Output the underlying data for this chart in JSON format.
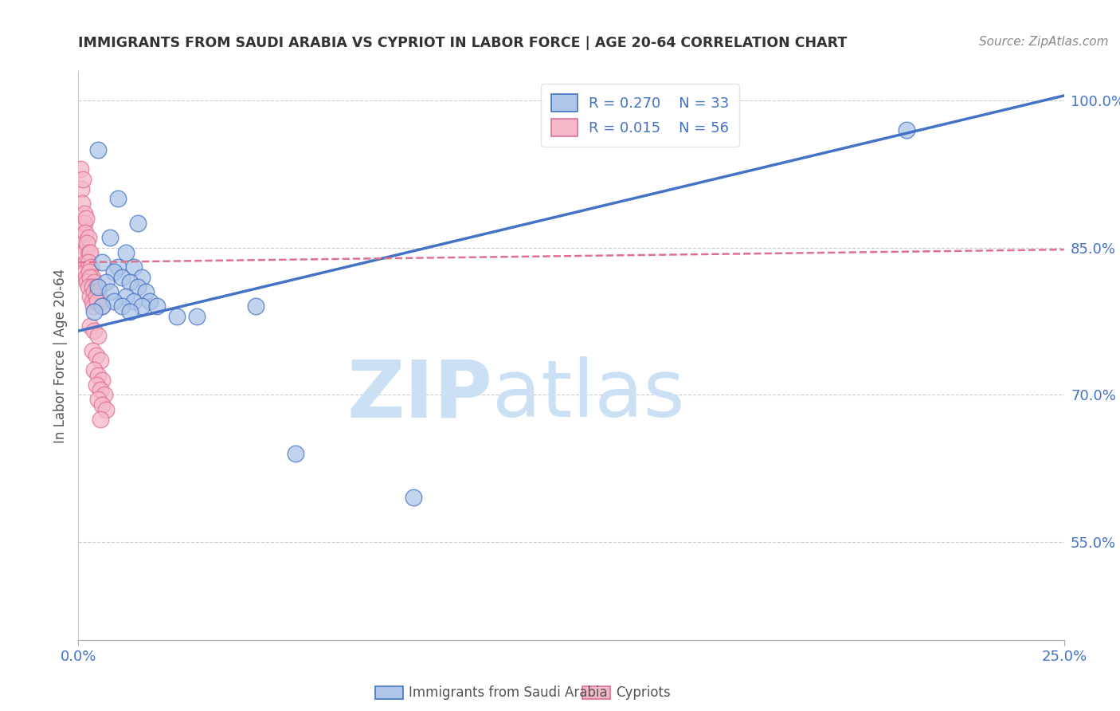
{
  "title": "IMMIGRANTS FROM SAUDI ARABIA VS CYPRIOT IN LABOR FORCE | AGE 20-64 CORRELATION CHART",
  "source": "Source: ZipAtlas.com",
  "ylabel": "In Labor Force | Age 20-64",
  "yticks": [
    55.0,
    70.0,
    85.0,
    100.0
  ],
  "ytick_labels": [
    "55.0%",
    "70.0%",
    "85.0%",
    "100.0%"
  ],
  "xlim": [
    0.0,
    25.0
  ],
  "ylim": [
    45.0,
    103.0
  ],
  "legend_r1": "R = 0.270",
  "legend_n1": "N = 33",
  "legend_r2": "R = 0.015",
  "legend_n2": "N = 56",
  "color_saudi": "#aec6e8",
  "color_cypriot": "#f5b8c8",
  "line_color_saudi": "#4472c4",
  "line_color_cypriot": "#e07090",
  "watermark_zip": "ZIP",
  "watermark_atlas": "atlas",
  "watermark_color": "#cce0f5",
  "title_color": "#333333",
  "source_color": "#888888",
  "axis_label_color": "#555555",
  "tick_color": "#4472c4",
  "saudi_scatter": [
    [
      0.5,
      95.0
    ],
    [
      1.0,
      90.0
    ],
    [
      1.5,
      87.5
    ],
    [
      0.8,
      86.0
    ],
    [
      1.2,
      84.5
    ],
    [
      0.6,
      83.5
    ],
    [
      1.0,
      83.0
    ],
    [
      1.4,
      83.0
    ],
    [
      0.9,
      82.5
    ],
    [
      1.1,
      82.0
    ],
    [
      1.6,
      82.0
    ],
    [
      0.7,
      81.5
    ],
    [
      1.3,
      81.5
    ],
    [
      0.5,
      81.0
    ],
    [
      1.5,
      81.0
    ],
    [
      0.8,
      80.5
    ],
    [
      1.7,
      80.5
    ],
    [
      1.2,
      80.0
    ],
    [
      0.9,
      79.5
    ],
    [
      1.4,
      79.5
    ],
    [
      1.8,
      79.5
    ],
    [
      0.6,
      79.0
    ],
    [
      1.1,
      79.0
    ],
    [
      1.6,
      79.0
    ],
    [
      0.4,
      78.5
    ],
    [
      1.3,
      78.5
    ],
    [
      2.0,
      79.0
    ],
    [
      2.5,
      78.0
    ],
    [
      3.0,
      78.0
    ],
    [
      4.5,
      79.0
    ],
    [
      5.5,
      64.0
    ],
    [
      8.5,
      59.5
    ],
    [
      21.0,
      97.0
    ]
  ],
  "cypriot_scatter": [
    [
      0.05,
      93.0
    ],
    [
      0.08,
      91.0
    ],
    [
      0.1,
      89.5
    ],
    [
      0.12,
      92.0
    ],
    [
      0.15,
      88.5
    ],
    [
      0.08,
      87.0
    ],
    [
      0.1,
      86.0
    ],
    [
      0.15,
      87.5
    ],
    [
      0.2,
      88.0
    ],
    [
      0.12,
      85.5
    ],
    [
      0.18,
      86.5
    ],
    [
      0.2,
      85.0
    ],
    [
      0.25,
      86.0
    ],
    [
      0.15,
      84.5
    ],
    [
      0.22,
      85.5
    ],
    [
      0.28,
      84.5
    ],
    [
      0.2,
      83.5
    ],
    [
      0.25,
      83.0
    ],
    [
      0.3,
      84.5
    ],
    [
      0.18,
      82.5
    ],
    [
      0.25,
      83.5
    ],
    [
      0.32,
      83.0
    ],
    [
      0.2,
      82.0
    ],
    [
      0.28,
      82.5
    ],
    [
      0.35,
      82.0
    ],
    [
      0.22,
      81.5
    ],
    [
      0.3,
      82.0
    ],
    [
      0.4,
      81.5
    ],
    [
      0.25,
      81.0
    ],
    [
      0.35,
      81.0
    ],
    [
      0.45,
      81.0
    ],
    [
      0.3,
      80.0
    ],
    [
      0.4,
      80.5
    ],
    [
      0.5,
      80.5
    ],
    [
      0.35,
      79.5
    ],
    [
      0.45,
      80.0
    ],
    [
      0.55,
      79.5
    ],
    [
      0.38,
      79.0
    ],
    [
      0.48,
      79.5
    ],
    [
      0.6,
      79.0
    ],
    [
      0.3,
      77.0
    ],
    [
      0.4,
      76.5
    ],
    [
      0.5,
      76.0
    ],
    [
      0.35,
      74.5
    ],
    [
      0.45,
      74.0
    ],
    [
      0.55,
      73.5
    ],
    [
      0.4,
      72.5
    ],
    [
      0.5,
      72.0
    ],
    [
      0.6,
      71.5
    ],
    [
      0.45,
      71.0
    ],
    [
      0.55,
      70.5
    ],
    [
      0.65,
      70.0
    ],
    [
      0.5,
      69.5
    ],
    [
      0.6,
      69.0
    ],
    [
      0.7,
      68.5
    ],
    [
      0.55,
      67.5
    ]
  ],
  "saudi_trend_x": [
    0.0,
    25.0
  ],
  "saudi_trend_y": [
    76.5,
    100.5
  ],
  "cypriot_trend_x": [
    0.0,
    25.0
  ],
  "cypriot_trend_y": [
    83.5,
    84.8
  ],
  "bottom_legend_label1": "Immigrants from Saudi Arabia",
  "bottom_legend_label2": "Cypriots"
}
